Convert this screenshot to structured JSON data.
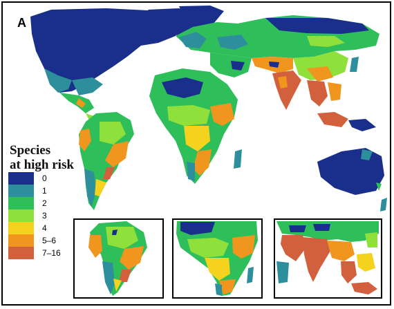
{
  "panel_label": "A",
  "legend": {
    "title_line1": "Species",
    "title_line2": "at high risk",
    "items": [
      {
        "label": "0",
        "color": "#1a2f8c"
      },
      {
        "label": "1",
        "color": "#2e8f9c"
      },
      {
        "label": "2",
        "color": "#2fbf5a"
      },
      {
        "label": "3",
        "color": "#8fe03a"
      },
      {
        "label": "4",
        "color": "#f5d21e"
      },
      {
        "label": "5–6",
        "color": "#f0961e"
      },
      {
        "label": "7–16",
        "color": "#d2603c"
      }
    ]
  },
  "insets": [
    {
      "region": "south-america"
    },
    {
      "region": "africa"
    },
    {
      "region": "south-asia"
    }
  ]
}
